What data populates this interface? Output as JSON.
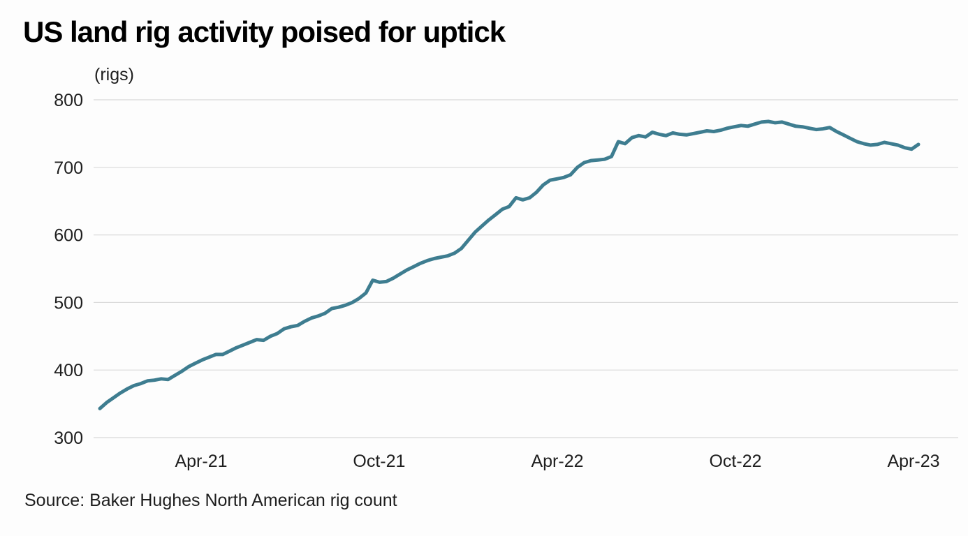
{
  "title": "US land rig activity poised for uptick",
  "unit_label": "(rigs)",
  "source": "Source: Baker Hughes North American rig count",
  "colors": {
    "line": "#3E7D90",
    "grid": "#D9D9D9",
    "text": "#1E1E1E",
    "title": "#000000",
    "background": "#FDFDFD"
  },
  "chart_data": {
    "type": "line",
    "title": "US land rig activity poised for uptick",
    "ylabel": "(rigs)",
    "xlabel": "",
    "ylim": [
      300,
      800
    ],
    "y_ticks": [
      300,
      400,
      500,
      600,
      700,
      800
    ],
    "x_tick_labels": [
      "Apr-21",
      "Oct-21",
      "Apr-22",
      "Oct-22",
      "Apr-23"
    ],
    "x_tick_indices": [
      14.85,
      40.95,
      67.06,
      93.17,
      119.28
    ],
    "grid": "horizontal-only",
    "legend": "none",
    "series": [
      {
        "name": "US land rig count",
        "cadence": "weekly",
        "values": [
          343,
          352,
          359,
          366,
          372,
          377,
          380,
          384,
          385,
          387,
          386,
          392,
          398,
          405,
          410,
          415,
          419,
          423,
          423,
          428,
          433,
          437,
          441,
          445,
          444,
          450,
          454,
          461,
          464,
          466,
          472,
          477,
          480,
          484,
          491,
          493,
          496,
          500,
          506,
          514,
          533,
          530,
          531,
          536,
          542,
          548,
          553,
          558,
          562,
          565,
          567,
          569,
          573,
          580,
          592,
          604,
          613,
          622,
          630,
          638,
          642,
          655,
          652,
          655,
          663,
          674,
          681,
          683,
          685,
          689,
          700,
          707,
          710,
          711,
          712,
          716,
          738,
          735,
          744,
          747,
          745,
          752,
          749,
          747,
          751,
          749,
          748,
          750,
          752,
          754,
          753,
          755,
          758,
          760,
          762,
          761,
          764,
          767,
          768,
          766,
          767,
          764,
          761,
          760,
          758,
          756,
          757,
          759,
          753,
          748,
          743,
          738,
          735,
          733,
          734,
          737,
          735,
          733,
          729,
          727,
          734
        ]
      }
    ]
  }
}
